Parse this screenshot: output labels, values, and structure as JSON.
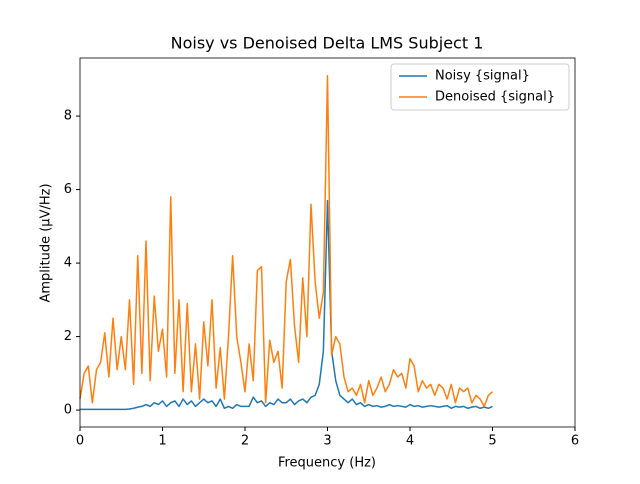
{
  "chart_data": {
    "type": "line",
    "title": "Noisy vs Denoised Delta LMS Subject 1",
    "x_label": "Frequency (Hz)",
    "y_label": "Amplitude (μV/Hz)",
    "x": [
      0,
      0.05,
      0.1,
      0.15,
      0.2,
      0.25,
      0.3,
      0.35,
      0.4,
      0.45,
      0.5,
      0.55,
      0.6,
      0.65,
      0.7,
      0.75,
      0.8,
      0.85,
      0.9,
      0.95,
      1,
      1.05,
      1.1,
      1.15,
      1.2,
      1.25,
      1.3,
      1.35,
      1.4,
      1.45,
      1.5,
      1.55,
      1.6,
      1.65,
      1.7,
      1.75,
      1.8,
      1.85,
      1.9,
      1.95,
      2,
      2.05,
      2.1,
      2.15,
      2.2,
      2.25,
      2.3,
      2.35,
      2.4,
      2.45,
      2.5,
      2.55,
      2.6,
      2.65,
      2.7,
      2.75,
      2.8,
      2.85,
      2.9,
      2.95,
      3,
      3.05,
      3.1,
      3.15,
      3.2,
      3.25,
      3.3,
      3.35,
      3.4,
      3.45,
      3.5,
      3.55,
      3.6,
      3.65,
      3.7,
      3.75,
      3.8,
      3.85,
      3.9,
      3.95,
      4,
      4.05,
      4.1,
      4.15,
      4.2,
      4.25,
      4.3,
      4.35,
      4.4,
      4.45,
      4.5,
      4.55,
      4.6,
      4.65,
      4.7,
      4.75,
      4.8,
      4.85,
      4.9,
      4.95,
      5
    ],
    "series": [
      {
        "name": "Noisy {signal}",
        "color": "#1f77b4",
        "values": [
          0.02,
          0.02,
          0.02,
          0.02,
          0.02,
          0.02,
          0.02,
          0.02,
          0.02,
          0.02,
          0.02,
          0.02,
          0.03,
          0.05,
          0.08,
          0.1,
          0.15,
          0.1,
          0.2,
          0.15,
          0.25,
          0.1,
          0.2,
          0.25,
          0.1,
          0.3,
          0.15,
          0.25,
          0.1,
          0.2,
          0.3,
          0.2,
          0.25,
          0.1,
          0.3,
          0.05,
          0.1,
          0.05,
          0.15,
          0.1,
          0.1,
          0.1,
          0.35,
          0.2,
          0.25,
          0.1,
          0.2,
          0.15,
          0.3,
          0.2,
          0.2,
          0.3,
          0.15,
          0.25,
          0.3,
          0.2,
          0.35,
          0.4,
          0.7,
          1.6,
          5.7,
          1.6,
          0.8,
          0.4,
          0.3,
          0.2,
          0.3,
          0.15,
          0.2,
          0.1,
          0.15,
          0.1,
          0.12,
          0.08,
          0.1,
          0.15,
          0.1,
          0.12,
          0.1,
          0.08,
          0.15,
          0.1,
          0.12,
          0.08,
          0.1,
          0.12,
          0.1,
          0.08,
          0.1,
          0.12,
          0.05,
          0.1,
          0.08,
          0.1,
          0.05,
          0.08,
          0.1,
          0.05,
          0.08,
          0.05,
          0.1
        ]
      },
      {
        "name": "Denoised {signal}",
        "color": "#ff7f0e",
        "values": [
          0.3,
          1.0,
          1.2,
          0.2,
          1.1,
          1.3,
          2.1,
          0.9,
          2.5,
          1.1,
          2.0,
          1.1,
          3.0,
          0.7,
          4.2,
          1.0,
          4.6,
          0.8,
          3.1,
          1.6,
          2.2,
          0.9,
          5.8,
          1.0,
          3.0,
          0.5,
          2.9,
          0.5,
          1.8,
          0.3,
          2.4,
          1.2,
          3.0,
          0.6,
          1.7,
          0.3,
          2.0,
          4.2,
          2.0,
          1.3,
          0.5,
          1.8,
          0.8,
          3.8,
          3.9,
          0.2,
          1.9,
          1.3,
          1.6,
          0.6,
          3.5,
          4.1,
          2.3,
          1.3,
          3.6,
          2.0,
          5.6,
          3.5,
          2.5,
          3.2,
          9.1,
          1.5,
          2.0,
          1.8,
          0.9,
          0.5,
          0.6,
          0.4,
          0.7,
          0.2,
          0.8,
          0.4,
          0.6,
          0.9,
          0.5,
          0.7,
          1.1,
          0.9,
          1.0,
          0.6,
          1.4,
          1.2,
          0.5,
          0.8,
          0.6,
          0.7,
          0.4,
          0.7,
          0.6,
          0.3,
          0.7,
          0.2,
          0.6,
          0.5,
          0.6,
          0.2,
          0.4,
          0.3,
          0.1,
          0.4,
          0.5
        ]
      }
    ],
    "xlim": [
      0,
      6
    ],
    "ylim": [
      -0.46,
      9.58
    ],
    "xticks": [
      0,
      1,
      2,
      3,
      4,
      5,
      6
    ],
    "yticks": [
      0,
      2,
      4,
      6,
      8
    ],
    "legend": "upper right"
  }
}
